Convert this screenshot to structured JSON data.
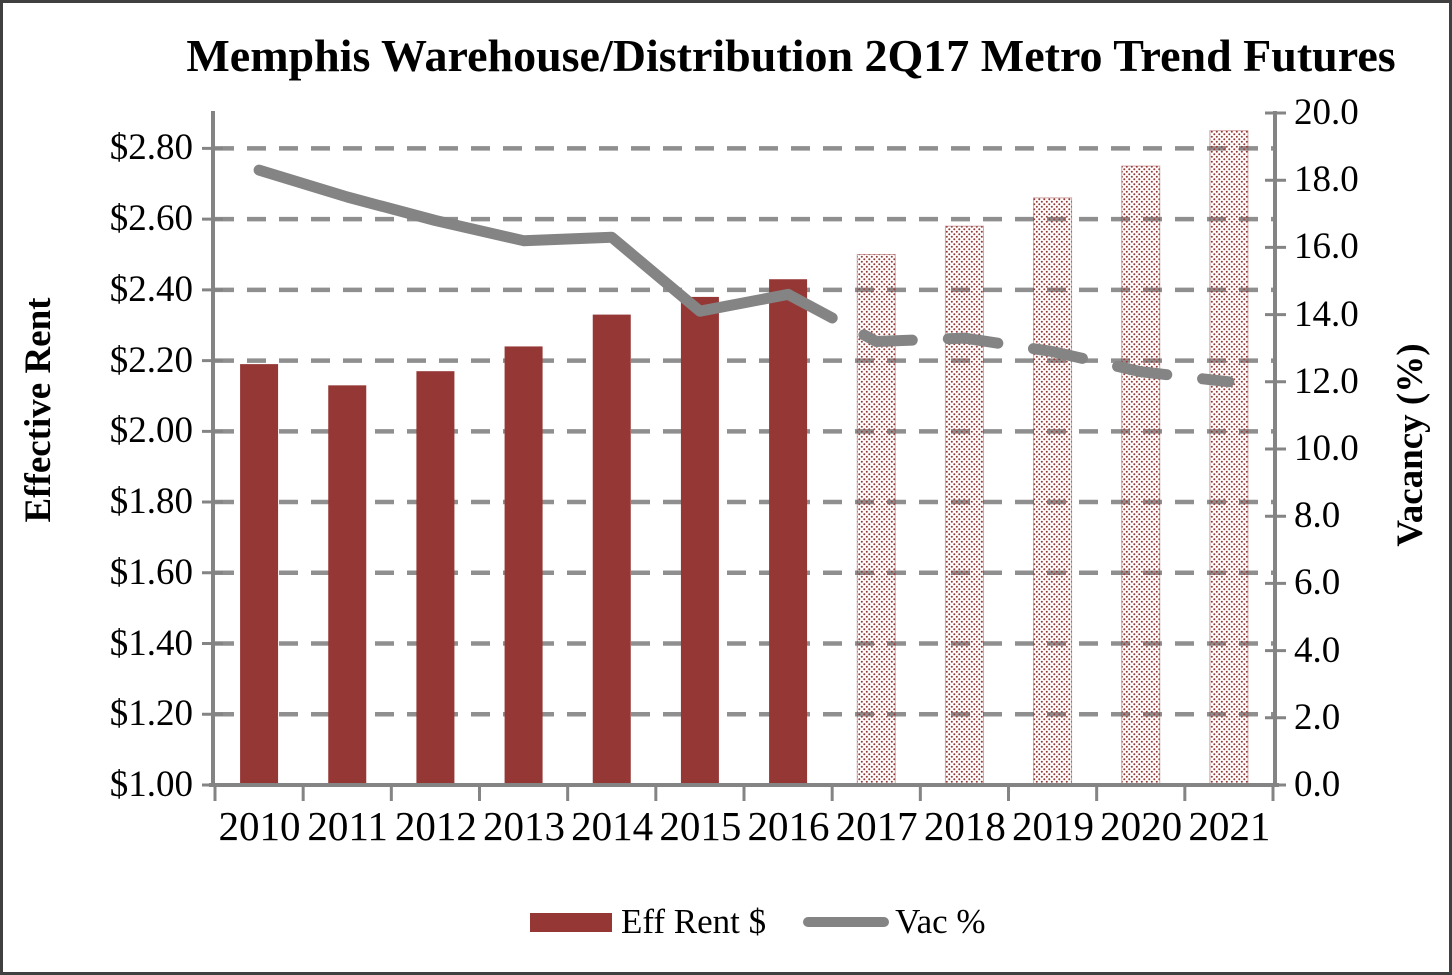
{
  "title": "Memphis Warehouse/Distribution 2Q17 Metro Trend Futures",
  "colors": {
    "bar": "#953735",
    "bar_pattern_dot": "#953735",
    "line": "#848484",
    "grid": "#8f8f8f",
    "axis": "#848484",
    "text": "#000000",
    "border": "#404040"
  },
  "legend": {
    "rent_label": "Eff Rent $",
    "vac_label": "Vac %"
  },
  "chart_data": {
    "type": "bar",
    "subtype": "combo-bar-line-dual-axis",
    "title": "Memphis Warehouse/Distribution 2Q17 Metro Trend Futures",
    "categories": [
      "2010",
      "2011",
      "2012",
      "2013",
      "2014",
      "2015",
      "2016",
      "2017",
      "2018",
      "2019",
      "2020",
      "2021"
    ],
    "series": [
      {
        "name": "Eff Rent $",
        "type": "bar",
        "axis": "left",
        "values": [
          2.19,
          2.13,
          2.17,
          2.24,
          2.33,
          2.38,
          2.43,
          2.5,
          2.58,
          2.66,
          2.75,
          2.85
        ],
        "forecast_from_index": 7,
        "actual_style": "solid-fill",
        "forecast_style": "dotted-pattern-fill"
      },
      {
        "name": "Vac %",
        "type": "line",
        "axis": "right",
        "values": [
          18.3,
          17.5,
          16.8,
          16.2,
          16.3,
          14.1,
          14.6,
          13.2,
          13.3,
          12.9,
          12.3,
          12.0
        ],
        "forecast_from_index": 7,
        "actual_style": "solid",
        "forecast_style": "dashed"
      }
    ],
    "xlabel": "",
    "y_left": {
      "label": "Effective Rent",
      "min": 1.0,
      "max": 2.9,
      "tick_labels": [
        "$1.00",
        "$1.20",
        "$1.40",
        "$1.60",
        "$1.80",
        "$2.00",
        "$2.20",
        "$2.40",
        "$2.60",
        "$2.80"
      ],
      "tick_values": [
        1.0,
        1.2,
        1.4,
        1.6,
        1.8,
        2.0,
        2.2,
        2.4,
        2.6,
        2.8
      ]
    },
    "y_right": {
      "label": "Vacancy (%)",
      "min": 0,
      "max": 20,
      "tick_labels": [
        "0.0",
        "2.0",
        "4.0",
        "6.0",
        "8.0",
        "10.0",
        "12.0",
        "14.0",
        "16.0",
        "18.0",
        "20.0"
      ],
      "tick_values": [
        0,
        2,
        4,
        6,
        8,
        10,
        12,
        14,
        16,
        18,
        20
      ]
    },
    "grid": "horizontal-dashed",
    "legend_position": "bottom"
  }
}
